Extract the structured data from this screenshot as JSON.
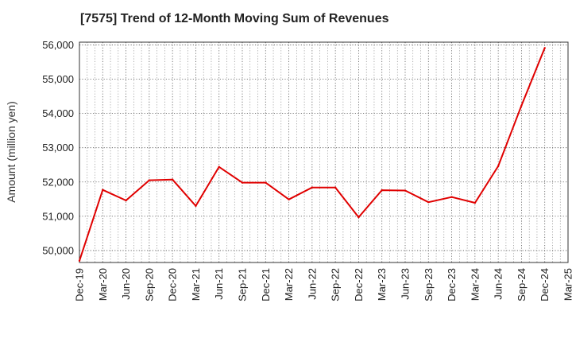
{
  "chart_data": {
    "type": "line",
    "title": "[7575]  Trend of 12-Month Moving Sum of Revenues",
    "xlabel": "",
    "ylabel": "Amount (million yen)",
    "ylim": [
      49650,
      56080
    ],
    "yticks": [
      50000,
      51000,
      52000,
      53000,
      54000,
      55000,
      56000
    ],
    "ytick_labels": [
      "50,000",
      "51,000",
      "52,000",
      "53,000",
      "54,000",
      "55,000",
      "56,000"
    ],
    "categories": [
      "Dec-19",
      "Mar-20",
      "Jun-20",
      "Sep-20",
      "Dec-20",
      "Mar-21",
      "Jun-21",
      "Sep-21",
      "Dec-21",
      "Mar-22",
      "Jun-22",
      "Sep-22",
      "Dec-22",
      "Mar-23",
      "Jun-23",
      "Sep-23",
      "Dec-23",
      "Mar-24",
      "Jun-24",
      "Sep-24",
      "Dec-24",
      "Mar-25"
    ],
    "grid": true,
    "series": [
      {
        "color": "#e00000",
        "values": [
          49700,
          51770,
          51460,
          52050,
          52070,
          51300,
          52440,
          51980,
          51980,
          51490,
          51840,
          51840,
          50970,
          51760,
          51750,
          51410,
          51560,
          51390,
          52460,
          54230,
          55910,
          null
        ]
      }
    ]
  }
}
